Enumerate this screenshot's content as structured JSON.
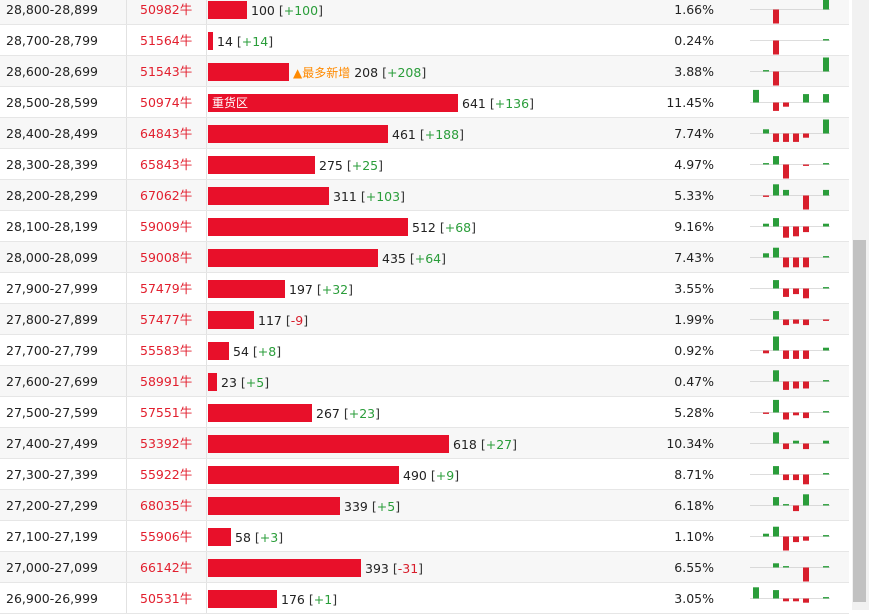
{
  "rows": [
    {
      "range": "28,800-28,899",
      "name": "50982牛",
      "count": 100,
      "change": "+100",
      "pct": "1.66%",
      "spark": [
        0,
        0,
        -1,
        0,
        0,
        0,
        0,
        1
      ]
    },
    {
      "range": "28,700-28,799",
      "name": "51564牛",
      "count": 14,
      "change": "+14",
      "pct": "0.24%",
      "spark": [
        0,
        0,
        -1,
        0,
        0,
        0,
        0,
        0.1
      ]
    },
    {
      "range": "28,600-28,699",
      "name": "51543牛",
      "count": 208,
      "change": "+208",
      "tag": "▲最多新增",
      "pct": "3.88%",
      "spark": [
        0,
        0.1,
        -1,
        0,
        0,
        0,
        0,
        1
      ]
    },
    {
      "range": "28,500-28,599",
      "name": "50974牛",
      "count": 641,
      "change": "+136",
      "label": "重货区",
      "pct": "11.45%",
      "spark": [
        0.9,
        0,
        -0.6,
        -0.3,
        0,
        0.6,
        0,
        0.6
      ]
    },
    {
      "range": "28,400-28,499",
      "name": "64843牛",
      "count": 461,
      "change": "+188",
      "pct": "7.74%",
      "spark": [
        0,
        0.3,
        -0.6,
        -0.6,
        -0.6,
        -0.3,
        0,
        1
      ]
    },
    {
      "range": "28,300-28,399",
      "name": "65843牛",
      "count": 275,
      "change": "+25",
      "pct": "4.97%",
      "spark": [
        0,
        0.1,
        0.6,
        -1,
        0,
        -0.1,
        0,
        0.1
      ]
    },
    {
      "range": "28,200-28,299",
      "name": "67062牛",
      "count": 311,
      "change": "+103",
      "pct": "5.33%",
      "spark": [
        0,
        -0.1,
        0.8,
        0.4,
        0,
        -1,
        0,
        0.4
      ]
    },
    {
      "range": "28,100-28,199",
      "name": "59009牛",
      "count": 512,
      "change": "+68",
      "pct": "9.16%",
      "spark": [
        0,
        0.2,
        0.6,
        -0.8,
        -0.7,
        -0.4,
        0,
        0.2
      ]
    },
    {
      "range": "28,000-28,099",
      "name": "59008牛",
      "count": 435,
      "change": "+64",
      "pct": "7.43%",
      "spark": [
        0,
        0.3,
        0.7,
        -0.7,
        -0.7,
        -0.7,
        0,
        0.1
      ]
    },
    {
      "range": "27,900-27,999",
      "name": "57479牛",
      "count": 197,
      "change": "+32",
      "pct": "3.55%",
      "spark": [
        0,
        0,
        0.6,
        -0.6,
        -0.4,
        -0.7,
        0,
        0.1
      ]
    },
    {
      "range": "27,800-27,899",
      "name": "57477牛",
      "count": 117,
      "change": "-9",
      "pct": "1.99%",
      "spark": [
        0,
        0,
        0.6,
        -0.4,
        -0.3,
        -0.4,
        0,
        -0.1
      ]
    },
    {
      "range": "27,700-27,799",
      "name": "55583牛",
      "count": 54,
      "change": "+8",
      "pct": "0.92%",
      "spark": [
        0,
        -0.2,
        1,
        -0.6,
        -0.6,
        -0.6,
        0,
        0.2
      ]
    },
    {
      "range": "27,600-27,699",
      "name": "58991牛",
      "count": 23,
      "change": "+5",
      "pct": "0.47%",
      "spark": [
        0,
        0,
        0.8,
        -0.6,
        -0.5,
        -0.5,
        0,
        0.1
      ]
    },
    {
      "range": "27,500-27,599",
      "name": "57551牛",
      "count": 267,
      "change": "+23",
      "pct": "5.28%",
      "spark": [
        0,
        -0.1,
        0.9,
        -0.5,
        -0.2,
        -0.4,
        0,
        0.1
      ]
    },
    {
      "range": "27,400-27,499",
      "name": "53392牛",
      "count": 618,
      "change": "+27",
      "pct": "10.34%",
      "spark": [
        0,
        0,
        0.8,
        -0.4,
        0.2,
        -0.4,
        0,
        0.2
      ]
    },
    {
      "range": "27,300-27,399",
      "name": "55922牛",
      "count": 490,
      "change": "+9",
      "pct": "8.71%",
      "spark": [
        0,
        0,
        0.6,
        -0.4,
        -0.4,
        -0.7,
        0,
        0.1
      ]
    },
    {
      "range": "27,200-27,299",
      "name": "68035牛",
      "count": 339,
      "change": "+5",
      "pct": "6.18%",
      "spark": [
        0,
        0,
        0.6,
        0.1,
        -0.4,
        0.8,
        0,
        0.1
      ]
    },
    {
      "range": "27,100-27,199",
      "name": "55906牛",
      "count": 58,
      "change": "+3",
      "pct": "1.10%",
      "spark": [
        0,
        0.2,
        0.7,
        -1,
        -0.4,
        -0.3,
        0,
        0.1
      ]
    },
    {
      "range": "27,000-27,099",
      "name": "66142牛",
      "count": 393,
      "change": "-31",
      "pct": "6.55%",
      "spark": [
        0,
        0,
        0.3,
        0.1,
        0,
        -1,
        0,
        0.1
      ]
    },
    {
      "range": "26,900-26,999",
      "name": "50531牛",
      "count": 176,
      "change": "+1",
      "pct": "3.05%",
      "spark": [
        0.8,
        0,
        0.6,
        -0.2,
        -0.2,
        -0.3,
        0,
        0.1
      ]
    }
  ],
  "bar_max_count": 641,
  "colors": {
    "name": "#e21f2e",
    "bar": "#e8102a",
    "up": "#2a9d3a",
    "down": "#d81e2c",
    "tag": "#ff8a00"
  }
}
